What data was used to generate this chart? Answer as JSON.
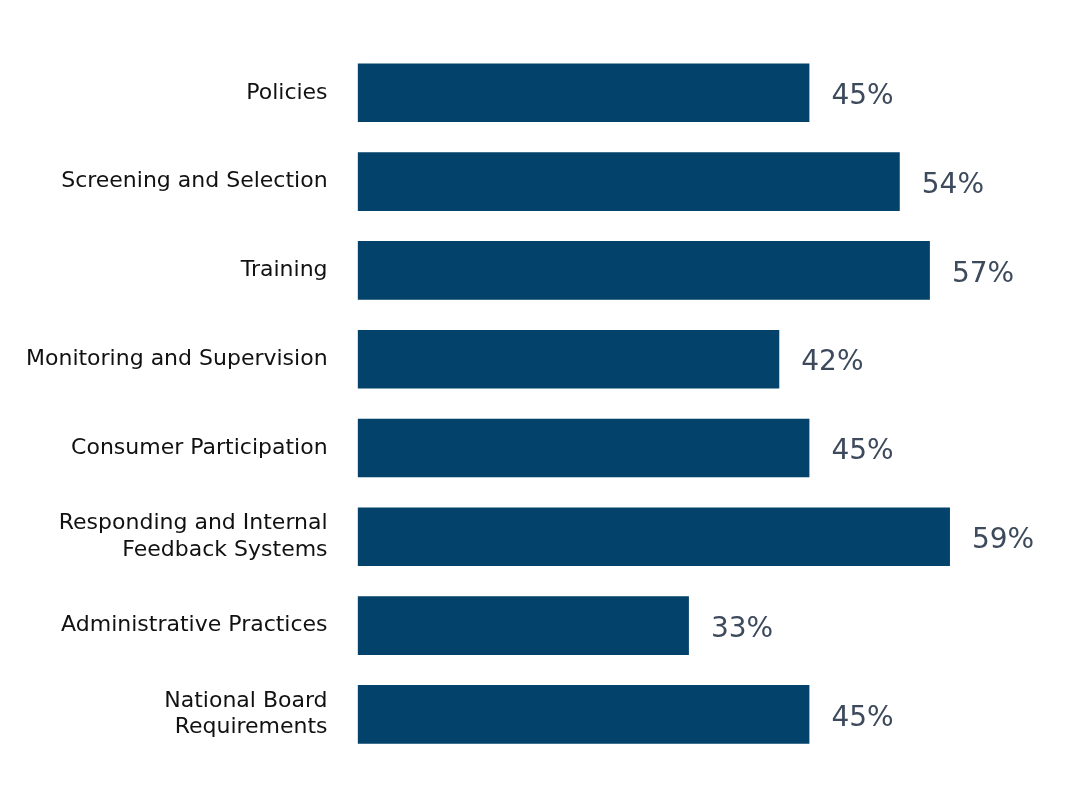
{
  "chart_data": {
    "type": "bar",
    "orientation": "horizontal",
    "categories": [
      "Policies",
      "Screening and Selection",
      "Training",
      "Monitoring and Supervision",
      "Consumer Participation",
      "Responding and Internal Feedback Systems",
      "Administrative Practices",
      "National Board Requirements"
    ],
    "values": [
      45,
      54,
      57,
      42,
      45,
      59,
      33,
      45
    ],
    "color": "#03426a",
    "value_labels": [
      "45%",
      "54%",
      "57%",
      "42%",
      "45%",
      "59%",
      "33%",
      "45%"
    ],
    "tick_labels": "y"
  }
}
